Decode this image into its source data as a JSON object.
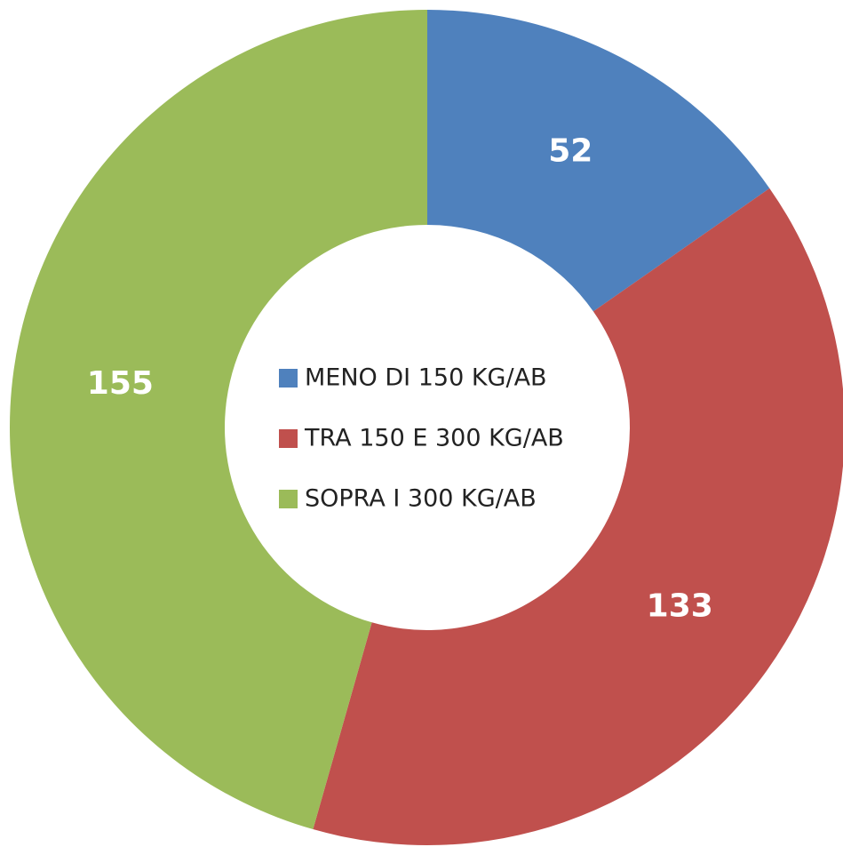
{
  "chart_data": {
    "type": "donut",
    "categories": [
      "MENO DI 150 KG/AB",
      "TRA 150 E 300 KG/AB",
      "SOPRA I 300 KG/AB"
    ],
    "values": [
      52,
      133,
      155
    ],
    "colors": [
      "#4f81bd",
      "#c0504d",
      "#9bbb59"
    ],
    "legend": "center"
  }
}
